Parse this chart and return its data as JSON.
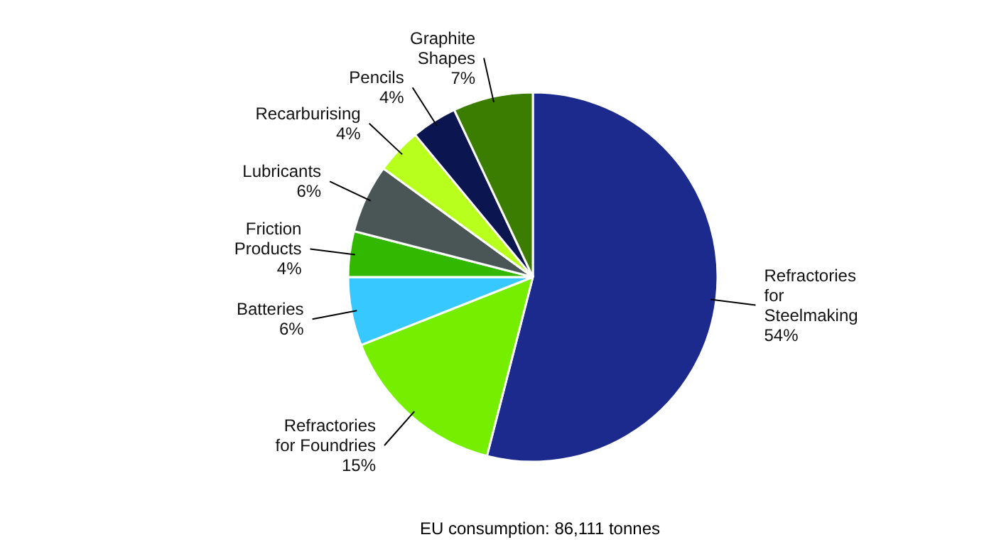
{
  "chart_data": {
    "type": "pie",
    "categories": [
      "Refractories for Steelmaking",
      "Refractories for Foundries",
      "Batteries",
      "Friction Products",
      "Lubricants",
      "Recarburising",
      "Pencils",
      "Graphite Shapes"
    ],
    "values": [
      54,
      15,
      6,
      4,
      6,
      4,
      4,
      7
    ],
    "value_labels": [
      "54%",
      "15%",
      "6%",
      "4%",
      "6%",
      "4%",
      "4%",
      "7%"
    ],
    "colors": [
      "#1b2a8c",
      "#76ee00",
      "#36c8ff",
      "#33b800",
      "#4a5656",
      "#b8ff1e",
      "#0b1550",
      "#3a7d00"
    ],
    "annotations": [
      "EU consumption: 86,111 tonnes"
    ]
  }
}
